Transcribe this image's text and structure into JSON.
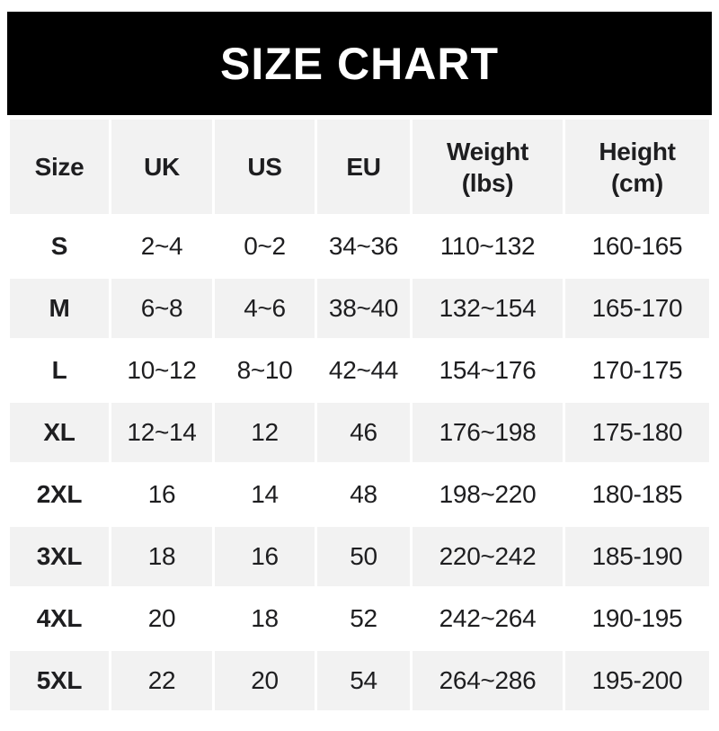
{
  "banner": {
    "title": "SIZE CHART",
    "bg_color": "#000000",
    "text_color": "#ffffff"
  },
  "table": {
    "stripe_color": "#f2f2f2",
    "text_color": "#1e1e20",
    "columns": [
      {
        "label": "Size"
      },
      {
        "label": "UK"
      },
      {
        "label": "US"
      },
      {
        "label": "EU"
      },
      {
        "label": "Weight",
        "sublabel": "(lbs)"
      },
      {
        "label": "Height",
        "sublabel": "(cm)"
      }
    ],
    "rows": [
      {
        "cells": [
          "S",
          "2~4",
          "0~2",
          "34~36",
          "110~132",
          "160-165"
        ]
      },
      {
        "cells": [
          "M",
          "6~8",
          "4~6",
          "38~40",
          "132~154",
          "165-170"
        ]
      },
      {
        "cells": [
          "L",
          "10~12",
          "8~10",
          "42~44",
          "154~176",
          "170-175"
        ]
      },
      {
        "cells": [
          "XL",
          "12~14",
          "12",
          "46",
          "176~198",
          "175-180"
        ]
      },
      {
        "cells": [
          "2XL",
          "16",
          "14",
          "48",
          "198~220",
          "180-185"
        ]
      },
      {
        "cells": [
          "3XL",
          "18",
          "16",
          "50",
          "220~242",
          "185-190"
        ]
      },
      {
        "cells": [
          "4XL",
          "20",
          "18",
          "52",
          "242~264",
          "190-195"
        ]
      },
      {
        "cells": [
          "5XL",
          "22",
          "20",
          "54",
          "264~286",
          "195-200"
        ]
      }
    ]
  }
}
